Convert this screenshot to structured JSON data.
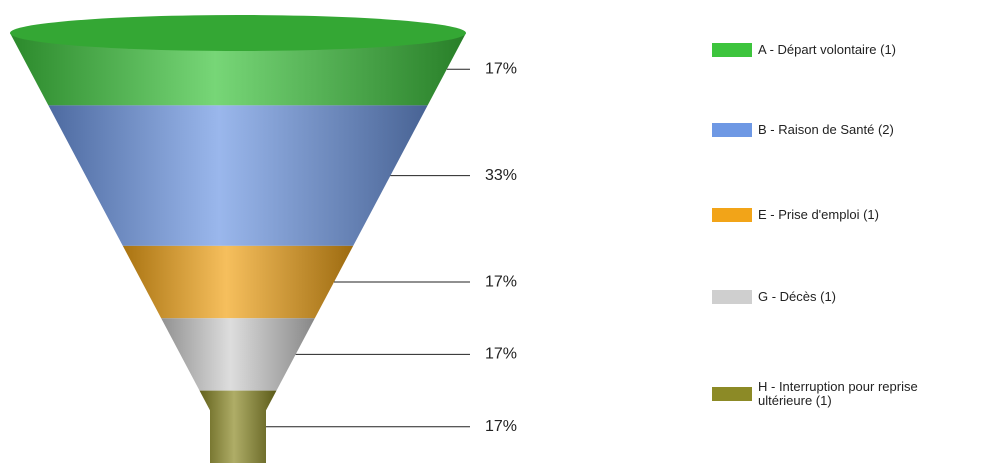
{
  "chart_data": {
    "type": "funnel",
    "categories": [
      "A - Départ volontaire (1)",
      "B - Raison de Santé (2)",
      "E - Prise d'emploi (1)",
      "G - Décès (1)",
      "H - Interruption pour reprise ultérieure (1)"
    ],
    "values": [
      17,
      33,
      17,
      17,
      17
    ],
    "value_labels": [
      "17%",
      "33%",
      "17%",
      "17%",
      "17%"
    ],
    "colors": [
      "#3dc43d",
      "#6e98e4",
      "#f2a418",
      "#cfcfcf",
      "#8c8a26"
    ],
    "legend": "right"
  }
}
